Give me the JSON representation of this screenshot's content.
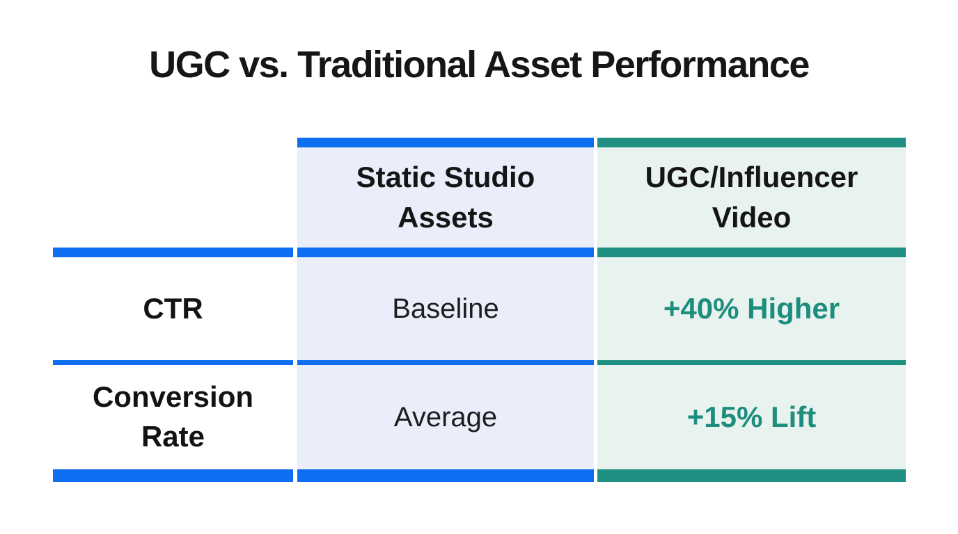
{
  "title": "UGC vs. Traditional Asset Performance",
  "table": {
    "columns": [
      {
        "id": "static-studio-assets",
        "header": "Static Studio\nAssets",
        "accent": "#0d6ef2",
        "bg": "#e9eefa"
      },
      {
        "id": "ugc-influencer-video",
        "header": "UGC/Influencer\nVideo",
        "accent": "#1f9082",
        "bg": "#e8f3ef",
        "value_color": "#1d8d7e"
      }
    ],
    "label_column_accent": "#0d6ef2",
    "rows": [
      {
        "metric": "CTR",
        "static_value": "Baseline",
        "ugc_value": "+40% Higher"
      },
      {
        "metric": "Conversion\nRate",
        "static_value": "Average",
        "ugc_value": "+15% Lift"
      }
    ]
  },
  "chart_data": {
    "type": "table",
    "title": "UGC vs. Traditional Asset Performance",
    "columns": [
      "",
      "Static Studio Assets",
      "UGC/Influencer Video"
    ],
    "rows": [
      [
        "CTR",
        "Baseline",
        "+40% Higher"
      ],
      [
        "Conversion Rate",
        "Average",
        "+15% Lift"
      ]
    ],
    "notes": {
      "static_column_theme": "blue #0d6ef2 bars on light blue #e9eefa cells",
      "ugc_column_theme": "teal #1f9082 bars on light teal #e8f3ef cells, teal bold values",
      "label_column_theme": "white background with blue separator bars"
    }
  }
}
